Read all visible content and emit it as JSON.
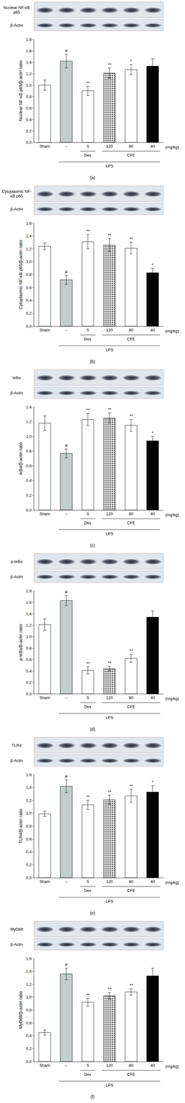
{
  "chart_data": [
    {
      "type": "bar",
      "panel_label": "(a)",
      "blot_labels": [
        "Nuclear NF-κB p65",
        "β-Actin"
      ],
      "y_label": "Nuclear NF-κB p65/β-actin ratio",
      "categories": [
        "Sham",
        "–",
        "5",
        "120",
        "80",
        "40"
      ],
      "values": [
        1.0,
        1.42,
        0.9,
        1.21,
        1.27,
        1.33
      ],
      "errors": [
        0.09,
        0.12,
        0.08,
        0.09,
        0.09,
        0.13
      ],
      "marks": [
        null,
        "#",
        "**",
        "**",
        "*",
        null
      ],
      "colors": [
        "#ffffff",
        "#c3cdcd",
        "#ffffff",
        "#2a2a2a",
        "#ffffff",
        "#000000"
      ],
      "ylim": [
        0,
        1.8
      ],
      "yticks": [
        {
          "value": 0,
          "label": "0.0"
        },
        0.2,
        0.4,
        0.6,
        0.8,
        {
          "value": 1,
          "label": "1.0"
        },
        1.2,
        1.4,
        1.6,
        1.8
      ],
      "x_groups": [
        {
          "label": "Dex",
          "from": 2,
          "to": 2
        },
        {
          "label": "CFE",
          "from": 3,
          "to": 5
        },
        {
          "label": "LPS",
          "from": 1,
          "to": 5
        }
      ],
      "unit_label": "(mg/kg)",
      "grid": false
    },
    {
      "type": "bar",
      "panel_label": "(b)",
      "blot_labels": [
        "Cytoplasmic NF-κB p65",
        "β-Actin"
      ],
      "y_label": "Cytoplasmic NF-κB p65/β-actin ratio",
      "categories": [
        "Sham",
        "–",
        "5",
        "120",
        "80",
        "40"
      ],
      "values": [
        1.24,
        0.72,
        1.31,
        1.26,
        1.21,
        0.83
      ],
      "errors": [
        0.05,
        0.07,
        0.11,
        0.1,
        0.09,
        0.07
      ],
      "marks": [
        null,
        "#",
        "**",
        "**",
        "**",
        "*"
      ],
      "colors": [
        "#ffffff",
        "#c3cdcd",
        "#ffffff",
        "#2a2a2a",
        "#ffffff",
        "#000000"
      ],
      "ylim": [
        0,
        1.6
      ],
      "yticks": [
        {
          "value": 0,
          "label": "0.0"
        },
        0.2,
        0.4,
        0.6,
        0.8,
        {
          "value": 1,
          "label": "1.0"
        },
        1.2,
        1.4,
        1.6
      ],
      "x_groups": [
        {
          "label": "Dex",
          "from": 2,
          "to": 2
        },
        {
          "label": "CFE",
          "from": 3,
          "to": 5
        },
        {
          "label": "LPS",
          "from": 1,
          "to": 5
        }
      ],
      "unit_label": "(mg/kg)",
      "grid": false
    },
    {
      "type": "bar",
      "panel_label": "(c)",
      "blot_labels": [
        "IκBα",
        "β-Actin"
      ],
      "y_label": "IκBα/β-actin ratio",
      "categories": [
        "Sham",
        "–",
        "5",
        "120",
        "80",
        "40"
      ],
      "values": [
        1.18,
        0.77,
        1.23,
        1.25,
        1.15,
        0.94
      ],
      "errors": [
        0.1,
        0.06,
        0.08,
        0.07,
        0.08,
        0.06
      ],
      "marks": [
        null,
        "#",
        "**",
        "**",
        "**",
        "*"
      ],
      "colors": [
        "#ffffff",
        "#c3cdcd",
        "#ffffff",
        "#2a2a2a",
        "#ffffff",
        "#000000"
      ],
      "ylim": [
        0,
        1.4
      ],
      "yticks": [
        {
          "value": 0,
          "label": "0.0"
        },
        0.2,
        0.4,
        0.6,
        0.8,
        {
          "value": 1,
          "label": "1.0"
        },
        1.2,
        1.4
      ],
      "x_groups": [
        {
          "label": "Dex",
          "from": 2,
          "to": 2
        },
        {
          "label": "CFE",
          "from": 3,
          "to": 5
        },
        {
          "label": "LPS",
          "from": 1,
          "to": 5
        }
      ],
      "unit_label": "(mg/kg)",
      "grid": false
    },
    {
      "type": "bar",
      "panel_label": "(d)",
      "blot_labels": [
        "p-IκBα",
        "β-Actin"
      ],
      "y_label": "p-IκBα/β-actin ratio",
      "categories": [
        "Sham",
        "–",
        "5",
        "120",
        "80",
        "40"
      ],
      "values": [
        1.21,
        1.63,
        0.41,
        0.44,
        0.62,
        1.34
      ],
      "errors": [
        0.1,
        0.09,
        0.06,
        0.04,
        0.07,
        0.11
      ],
      "marks": [
        null,
        "#",
        "**",
        "**",
        "**",
        null
      ],
      "colors": [
        "#ffffff",
        "#c3cdcd",
        "#ffffff",
        "#2a2a2a",
        "#ffffff",
        "#000000"
      ],
      "ylim": [
        0,
        1.8
      ],
      "yticks": [
        {
          "value": 0,
          "label": "0.0"
        },
        0.2,
        0.4,
        0.6,
        0.8,
        {
          "value": 1,
          "label": "1.0"
        },
        1.2,
        1.4,
        1.6,
        1.8
      ],
      "x_groups": [
        {
          "label": "Dex",
          "from": 2,
          "to": 2
        },
        {
          "label": "CFE",
          "from": 3,
          "to": 5
        },
        {
          "label": "LPS",
          "from": 1,
          "to": 5
        }
      ],
      "unit_label": "(mg/kg)",
      "grid": false
    },
    {
      "type": "bar",
      "panel_label": "(e)",
      "blot_labels": [
        "TLR4",
        "β-Actin"
      ],
      "y_label": "TLR4/β-actin ratio",
      "categories": [
        "Sham",
        "–",
        "5",
        "120",
        "80",
        "40"
      ],
      "values": [
        0.99,
        1.42,
        1.13,
        1.21,
        1.27,
        1.33
      ],
      "errors": [
        0.04,
        0.1,
        0.07,
        0.07,
        0.1,
        0.1
      ],
      "marks": [
        null,
        "#",
        "**",
        "**",
        "**",
        "*"
      ],
      "colors": [
        "#ffffff",
        "#c3cdcd",
        "#ffffff",
        "#2a2a2a",
        "#ffffff",
        "#000000"
      ],
      "ylim": [
        0,
        1.6
      ],
      "yticks": [
        {
          "value": 0,
          "label": "0.0"
        },
        0.2,
        0.4,
        0.6,
        0.8,
        {
          "value": 1,
          "label": "1.0"
        },
        1.2,
        1.4,
        1.6
      ],
      "x_groups": [
        {
          "label": "Dex",
          "from": 2,
          "to": 2
        },
        {
          "label": "CFE",
          "from": 3,
          "to": 5
        },
        {
          "label": "LPS",
          "from": 1,
          "to": 5
        }
      ],
      "unit_label": "(mg/kg)",
      "grid": false
    },
    {
      "type": "bar",
      "panel_label": "(f)",
      "blot_labels": [
        "MyD88",
        "β-Actin"
      ],
      "y_label": "MyD88/β-actin ratio",
      "categories": [
        "Sham",
        "–",
        "5",
        "120",
        "80",
        "40"
      ],
      "values": [
        0.45,
        1.36,
        0.92,
        1.02,
        1.08,
        1.33
      ],
      "errors": [
        0.04,
        0.09,
        0.06,
        0.05,
        0.05,
        0.12
      ],
      "marks": [
        null,
        "#",
        "**",
        "**",
        "**",
        null
      ],
      "colors": [
        "#ffffff",
        "#c3cdcd",
        "#ffffff",
        "#2a2a2a",
        "#ffffff",
        "#000000"
      ],
      "ylim": [
        0,
        1.6
      ],
      "yticks": [
        {
          "value": 0,
          "label": "0.0"
        },
        0.2,
        0.4,
        0.6,
        0.8,
        {
          "value": 1,
          "label": "1.0"
        },
        1.2,
        1.4,
        1.6
      ],
      "x_groups": [
        {
          "label": "Dex",
          "from": 2,
          "to": 2
        },
        {
          "label": "CFE",
          "from": 3,
          "to": 5
        },
        {
          "label": "LPS",
          "from": 1,
          "to": 5
        }
      ],
      "unit_label": "(mg/kg)",
      "grid": false
    }
  ]
}
